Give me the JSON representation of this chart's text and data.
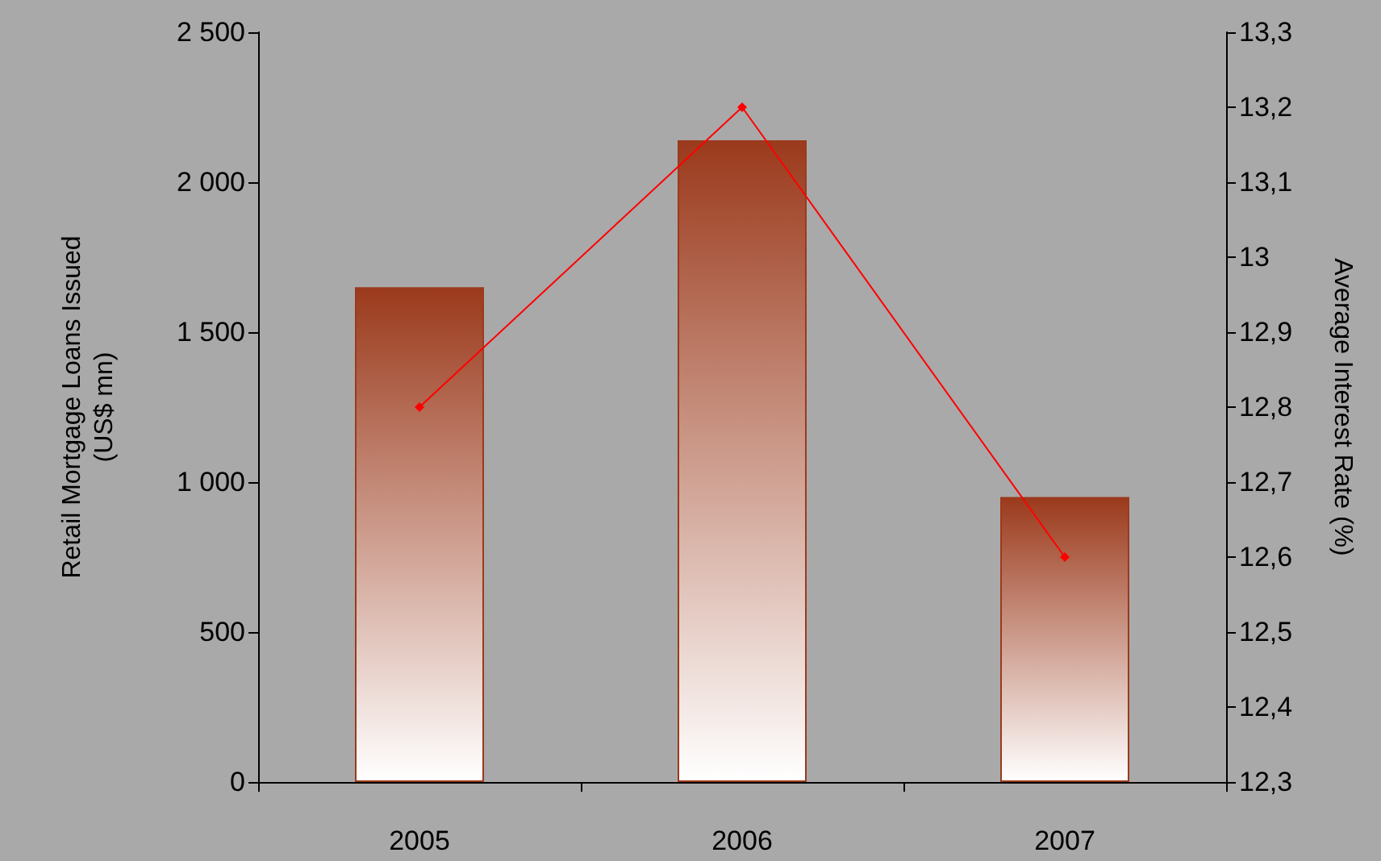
{
  "chart_data": {
    "type": "bar",
    "categories": [
      "2005",
      "2006",
      "2007"
    ],
    "ylabel": "Retail Mortgage Loans Issued (US$ mn)",
    "y2label": "Average Interest Rate (%)",
    "series": [
      {
        "color": "#9b3a1c",
        "values": [
          1650,
          2140,
          950
        ]
      },
      {
        "type": "line",
        "color": "#ff0000",
        "axis": "y2",
        "values": [
          12.8,
          13.2,
          12.6
        ]
      }
    ],
    "ylim": [
      0,
      2500
    ],
    "yticks": [
      {
        "value": 0,
        "label": "0"
      },
      {
        "value": 500,
        "label": "500"
      },
      {
        "value": 1000,
        "label": "1 000"
      },
      {
        "value": 1500,
        "label": "1 500"
      },
      {
        "value": 2000,
        "label": "2 000"
      },
      {
        "value": 2500,
        "label": "2 500"
      }
    ],
    "y2lim": [
      12.3,
      13.3
    ],
    "y2ticks": [
      {
        "value": 12.3,
        "label": "12,3"
      },
      {
        "value": 12.4,
        "label": "12,4"
      },
      {
        "value": 12.5,
        "label": "12,5"
      },
      {
        "value": 12.6,
        "label": "12,6"
      },
      {
        "value": 12.7,
        "label": "12,7"
      },
      {
        "value": 12.8,
        "label": "12,8"
      },
      {
        "value": 12.9,
        "label": "12,9"
      },
      {
        "value": 13,
        "label": "13"
      },
      {
        "value": 13.1,
        "label": "13,1"
      },
      {
        "value": 13.2,
        "label": "13,2"
      },
      {
        "value": 13.3,
        "label": "13,3"
      }
    ],
    "grid": false,
    "marker": "diamond",
    "line_style": "solid"
  }
}
